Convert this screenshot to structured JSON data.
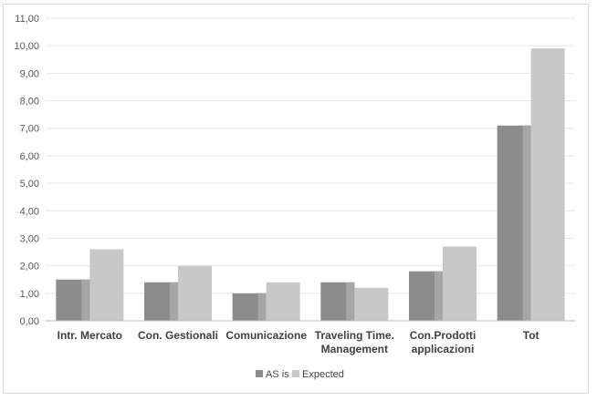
{
  "chart_data": {
    "type": "bar",
    "categories": [
      [
        "Intr. Mercato"
      ],
      [
        "Con. Gestionali"
      ],
      [
        "Comunicazione"
      ],
      [
        "Traveling Time.",
        "Management"
      ],
      [
        "Con.Prodotti",
        "applicazioni"
      ],
      [
        "Tot"
      ]
    ],
    "series": [
      {
        "name": "AS is",
        "values": [
          1.5,
          1.4,
          1.0,
          1.4,
          1.8,
          7.1
        ],
        "color": "#8c8c8c",
        "shade": "#a6a6a6"
      },
      {
        "name": "Expected",
        "values": [
          2.6,
          2.0,
          1.4,
          1.2,
          2.7,
          9.9
        ],
        "color": "#c8c8c8",
        "shade": "#c8c8c8"
      }
    ],
    "ylim": [
      0,
      11
    ],
    "ytick_step": 1,
    "ytick_labels": [
      "0,00",
      "1,00",
      "2,00",
      "3,00",
      "4,00",
      "5,00",
      "6,00",
      "7,00",
      "8,00",
      "9,00",
      "10,00",
      "11,00"
    ],
    "grid": true,
    "legend_position": "bottom"
  }
}
